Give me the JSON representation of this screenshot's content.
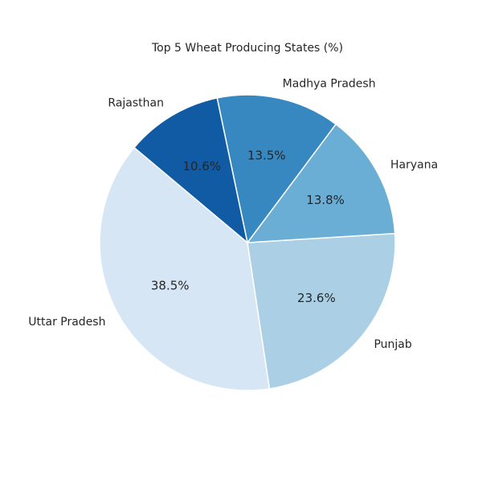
{
  "chart_data": {
    "type": "pie",
    "title": "Top 5 Wheat Producing States (%)",
    "categories": [
      "Uttar Pradesh",
      "Punjab",
      "Haryana",
      "Madhya Pradesh",
      "Rajasthan"
    ],
    "values": [
      38.5,
      23.6,
      13.8,
      13.5,
      10.6
    ],
    "value_labels": [
      "38.5%",
      "23.6%",
      "13.8%",
      "13.5%",
      "10.6%"
    ],
    "colors": [
      "#d6e6f4",
      "#abd0e6",
      "#6aaed6",
      "#3787c0",
      "#105ba4"
    ],
    "start_angle_deg": 140,
    "direction": "counterclockwise",
    "edge_color": "#ffffff"
  }
}
